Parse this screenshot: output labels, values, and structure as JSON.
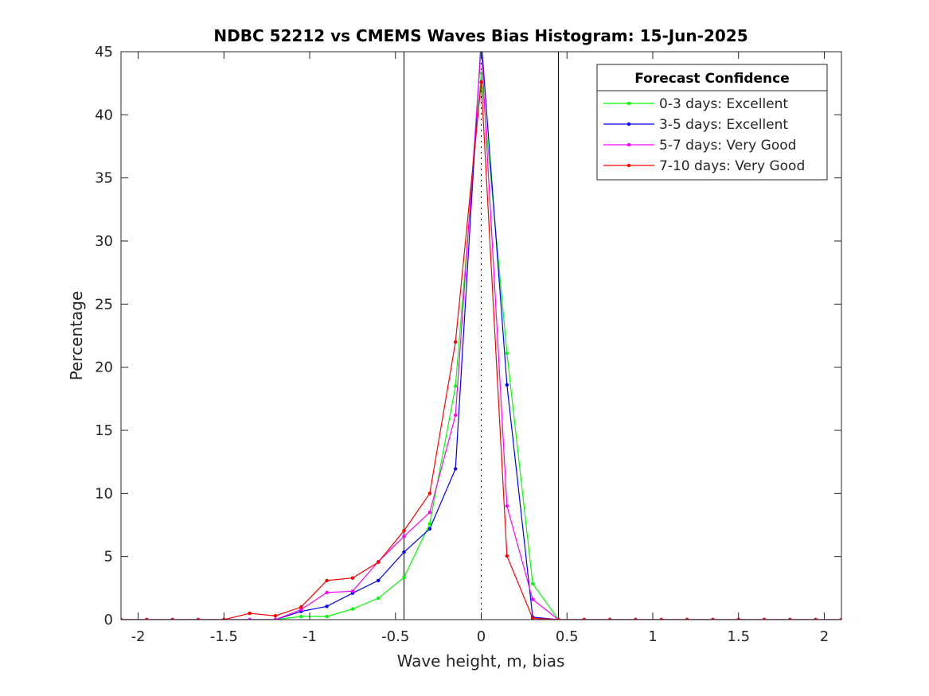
{
  "chart_data": {
    "type": "line",
    "title": "NDBC 52212 vs CMEMS Waves Bias Histogram: 15-Jun-2025",
    "xlabel": "Wave height, m, bias",
    "ylabel": "Percentage",
    "xlim": [
      -2.1,
      2.1
    ],
    "ylim": [
      0,
      45
    ],
    "xticks": [
      -2,
      -1.5,
      -1,
      -0.5,
      0,
      0.5,
      1,
      1.5,
      2
    ],
    "xtick_labels": [
      "-2",
      "-1.5",
      "-1",
      "-0.5",
      "0",
      "0.5",
      "1",
      "1.5",
      "2"
    ],
    "yticks": [
      0,
      5,
      10,
      15,
      20,
      25,
      30,
      35,
      40,
      45
    ],
    "ytick_labels": [
      "0",
      "5",
      "10",
      "15",
      "20",
      "25",
      "30",
      "35",
      "40",
      "45"
    ],
    "grid": false,
    "vertical_lines": [
      -0.45,
      0.45
    ],
    "zero_line": 0,
    "legend_title": "Forecast Confidence",
    "legend_position": "top-right",
    "x": [
      -2.1,
      -1.95,
      -1.8,
      -1.65,
      -1.5,
      -1.35,
      -1.2,
      -1.05,
      -0.9,
      -0.75,
      -0.6,
      -0.45,
      -0.3,
      -0.15,
      0,
      0.15,
      0.3,
      0.45,
      0.6,
      0.75,
      0.9,
      1.05,
      1.2,
      1.35,
      1.5,
      1.65,
      1.8,
      1.95,
      2.1
    ],
    "series": [
      {
        "name": "0-3 days: Excellent",
        "color": "#00ff00",
        "values": [
          0,
          0,
          0,
          0,
          0,
          0,
          0,
          0.25,
          0.25,
          0.85,
          1.7,
          3.35,
          7.6,
          18.5,
          43.3,
          21.1,
          2.85,
          0,
          0,
          0,
          0,
          0,
          0,
          0,
          0,
          0,
          0,
          0,
          0
        ]
      },
      {
        "name": "3-5 days: Excellent",
        "color": "#0000ff",
        "values": [
          0,
          0,
          0,
          0,
          0,
          0,
          0,
          0.65,
          1.05,
          2.1,
          3.1,
          5.35,
          7.2,
          11.95,
          46.0,
          18.6,
          0.2,
          0,
          0,
          0,
          0,
          0,
          0,
          0,
          0,
          0,
          0,
          0,
          0
        ]
      },
      {
        "name": "5-7 days: Very Good",
        "color": "#ff00ff",
        "values": [
          0,
          0,
          0,
          0,
          0,
          0,
          0,
          0.8,
          2.15,
          2.25,
          4.6,
          6.6,
          8.5,
          16.2,
          45.5,
          9.0,
          1.6,
          0,
          0,
          0,
          0,
          0,
          0,
          0,
          0,
          0,
          0,
          0,
          0
        ]
      },
      {
        "name": "7-10 days: Very Good",
        "color": "#ff0000",
        "values": [
          0,
          0,
          0,
          0,
          0,
          0.5,
          0.3,
          1.0,
          3.1,
          3.3,
          4.55,
          7.05,
          10.0,
          22.0,
          42.6,
          5.05,
          0.1,
          0,
          0,
          0,
          0,
          0,
          0,
          0,
          0,
          0,
          0,
          0,
          0
        ]
      }
    ]
  }
}
